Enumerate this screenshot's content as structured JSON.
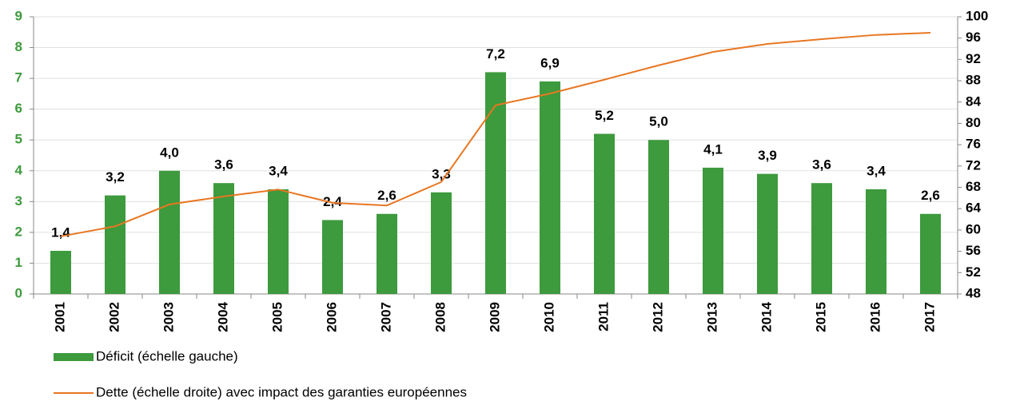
{
  "chart_data": {
    "type": "bar_line",
    "categories": [
      "2001",
      "2002",
      "2003",
      "2004",
      "2005",
      "2006",
      "2007",
      "2008",
      "2009",
      "2010",
      "2011",
      "2012",
      "2013",
      "2014",
      "2015",
      "2016",
      "2017"
    ],
    "series": [
      {
        "name": "Déficit (échelle gauche)",
        "type": "bar",
        "color": "#3d9a3d",
        "axis": "y",
        "values": [
          1.4,
          3.2,
          4.0,
          3.6,
          3.4,
          2.4,
          2.6,
          3.3,
          7.2,
          6.9,
          5.2,
          5.0,
          4.1,
          3.9,
          3.6,
          3.4,
          2.6
        ],
        "value_labels": [
          "1,4",
          "3,2",
          "4,0",
          "3,6",
          "3,4",
          "2,4",
          "2,6",
          "3,3",
          "7,2",
          "6,9",
          "5,2",
          "5,0",
          "4,1",
          "3,9",
          "3,6",
          "3,4",
          "2,6"
        ]
      },
      {
        "name": "Dette (échelle droite) avec impact des garanties européennes",
        "type": "line",
        "color": "#e87722",
        "axis": "y2",
        "values": [
          58.8,
          60.7,
          64.8,
          66.3,
          67.6,
          65.1,
          64.6,
          69.0,
          83.4,
          85.6,
          88.2,
          90.9,
          93.4,
          94.9,
          95.8,
          96.6,
          97.0
        ]
      }
    ],
    "ylim": [
      0,
      9
    ],
    "yticks": [
      0,
      1,
      2,
      3,
      4,
      5,
      6,
      7,
      8,
      9
    ],
    "ytick_color": "#3d9a3d",
    "y2lim": [
      48,
      100
    ],
    "y2ticks": [
      48,
      52,
      56,
      60,
      64,
      68,
      72,
      76,
      80,
      84,
      88,
      92,
      96,
      100
    ],
    "grid": true
  }
}
